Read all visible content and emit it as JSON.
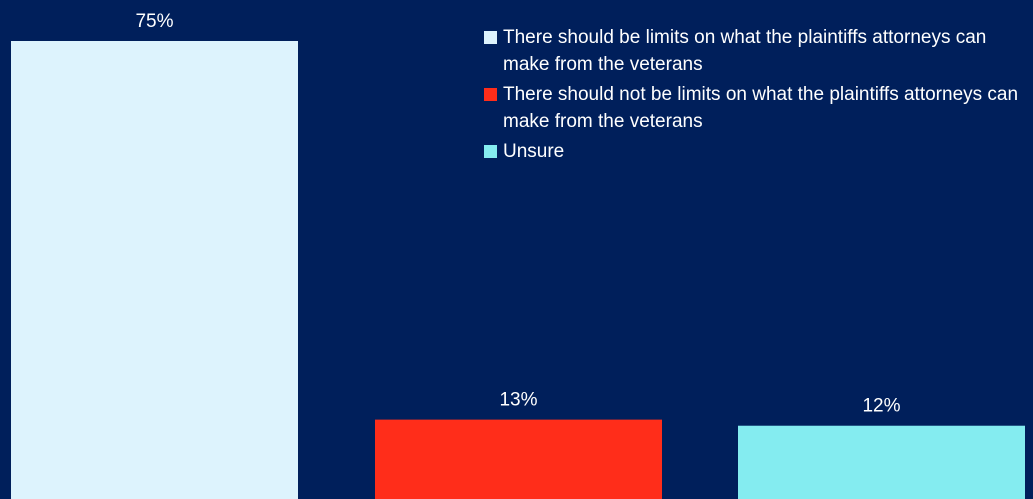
{
  "chart_data": {
    "type": "bar",
    "title": "",
    "xlabel": "",
    "ylabel": "",
    "ylim": [
      0,
      75
    ],
    "grid": false,
    "legend_position": "top-right",
    "categories": [
      "There should be limits on what the plaintiffs attorneys can make from the veterans",
      "There should not be limits on what the plaintiffs attorneys can make from the veterans",
      "Unsure"
    ],
    "values": [
      75,
      13,
      12
    ],
    "value_labels": [
      "75%",
      "13%",
      "12%"
    ],
    "colors": [
      "#ddf3fd",
      "#ff2d1a",
      "#84ecf0"
    ],
    "background": "#001f5b"
  },
  "legend": {
    "items": [
      {
        "label": "There should be limits on what the plaintiffs attorneys can make from the veterans",
        "color": "#ddf3fd"
      },
      {
        "label": "There should not be limits on what the plaintiffs attorneys can make from the veterans",
        "color": "#ff2d1a"
      },
      {
        "label": "Unsure",
        "color": "#84ecf0"
      }
    ]
  }
}
